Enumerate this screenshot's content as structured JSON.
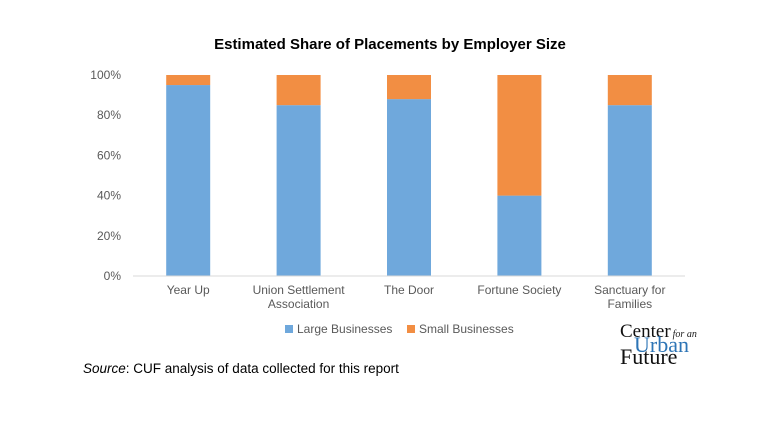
{
  "chart_data": {
    "type": "bar",
    "stacked": true,
    "title": "Estimated Share of Placements by Employer Size",
    "categories": [
      [
        "Year Up"
      ],
      [
        "Union Settlement",
        "Association"
      ],
      [
        "The Door"
      ],
      [
        "Fortune Society"
      ],
      [
        "Sanctuary for",
        "Families"
      ]
    ],
    "series": [
      {
        "name": "Large Businesses",
        "color": "#6fa8dc",
        "values": [
          0.95,
          0.85,
          0.88,
          0.4,
          0.85
        ]
      },
      {
        "name": "Small Businesses",
        "color": "#f28e43",
        "values": [
          0.05,
          0.15,
          0.12,
          0.6,
          0.15
        ]
      }
    ],
    "ylim": [
      0,
      1
    ],
    "yticks": [
      "0%",
      "20%",
      "40%",
      "60%",
      "80%",
      "100%"
    ],
    "grid": false,
    "legend": "bottom"
  },
  "source": {
    "label": "Source",
    "text": ": CUF analysis of data collected for this report"
  },
  "logo": {
    "line1": "Center",
    "line1_small": "for an",
    "line2": "Urban",
    "line3": "Future"
  }
}
